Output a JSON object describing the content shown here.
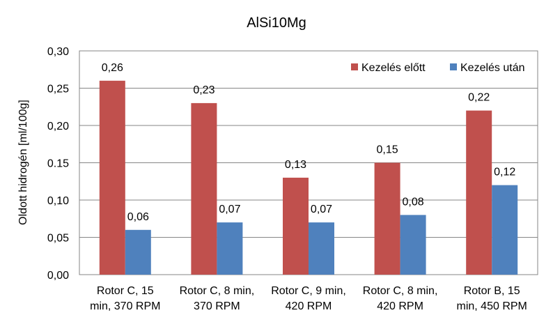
{
  "chart_data": {
    "type": "bar",
    "title": "AlSi10Mg",
    "ylabel": "Oldott hidrogén [ml/100g]",
    "xlabel": "",
    "ylim": [
      0,
      0.3
    ],
    "yticks": [
      "0,00",
      "0,05",
      "0,10",
      "0.15",
      "0,20",
      "0,25",
      "0,30"
    ],
    "ytick_values": [
      0,
      0.05,
      0.1,
      0.15,
      0.2,
      0.25,
      0.3
    ],
    "grid": true,
    "legend_position": "top-right",
    "categories": [
      [
        "Rotor C, 15",
        "min, 370 RPM"
      ],
      [
        "Rotor C, 8 min,",
        "370 RPM"
      ],
      [
        "Rotor C, 9 min,",
        "420 RPM"
      ],
      [
        "Rotor C, 8 min,",
        "420 RPM"
      ],
      [
        "Rotor B, 15",
        "min, 450 RPM"
      ]
    ],
    "series": [
      {
        "name": "Kezelés előtt",
        "color": "#c0504d",
        "values": [
          0.26,
          0.23,
          0.13,
          0.15,
          0.22
        ],
        "labels": [
          "0,26",
          "0,23",
          "0,13",
          "0,15",
          "0,22"
        ]
      },
      {
        "name": "Kezelés után",
        "color": "#4f81bd",
        "values": [
          0.06,
          0.07,
          0.07,
          0.08,
          0.12
        ],
        "labels": [
          "0,06",
          "0,07",
          "0,07",
          "0,08",
          "0,12"
        ]
      }
    ]
  }
}
